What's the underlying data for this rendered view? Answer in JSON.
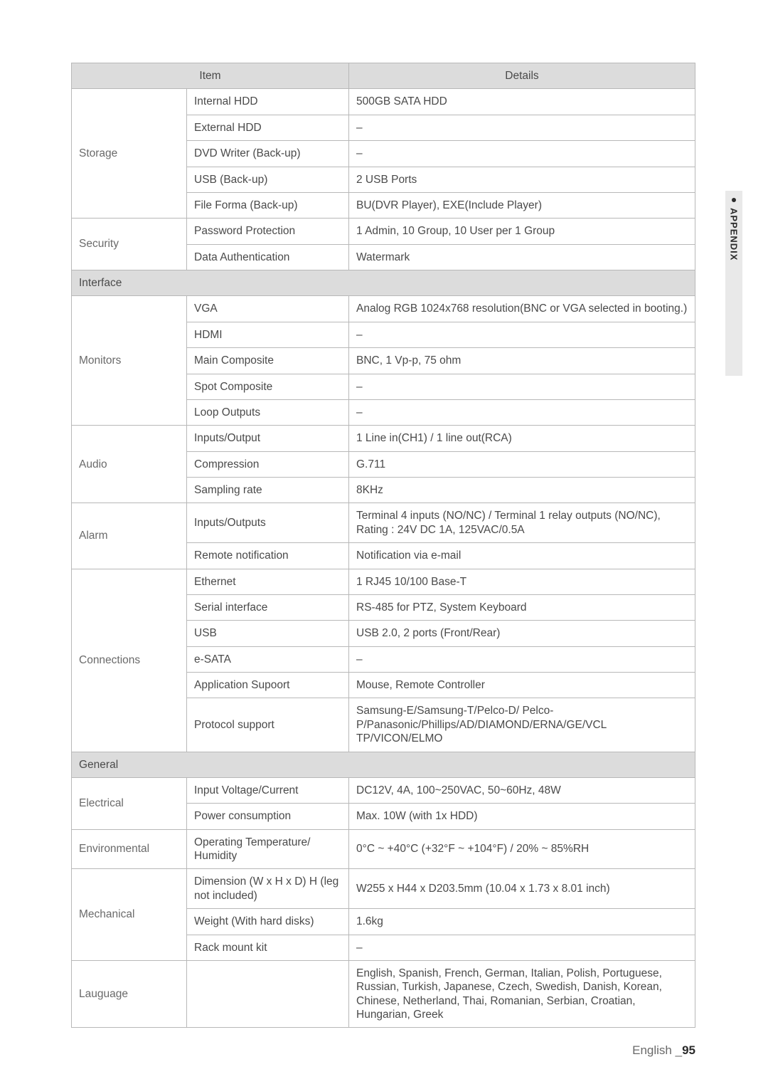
{
  "table": {
    "header_bg": "#dcdcdc",
    "border_color": "#b8b8b8",
    "text_color": "#4a4a4a",
    "font_size": 15.5,
    "headers": {
      "item": "Item",
      "details": "Details"
    },
    "sections": {
      "interface": "Interface",
      "general": "General"
    },
    "categories": {
      "storage": "Storage",
      "security": "Security",
      "monitors": "Monitors",
      "audio": "Audio",
      "alarm": "Alarm",
      "connections": "Connections",
      "electrical": "Electrical",
      "environmental": "Environmental",
      "mechanical": "Mechanical",
      "language": "Lauguage"
    },
    "rows": {
      "storage": [
        {
          "label": "Internal HDD",
          "value": "500GB SATA HDD"
        },
        {
          "label": "External HDD",
          "value": "–"
        },
        {
          "label": "DVD Writer (Back-up)",
          "value": "–"
        },
        {
          "label": "USB (Back-up)",
          "value": "2 USB Ports"
        },
        {
          "label": "File Forma (Back-up)",
          "value": "BU(DVR Player), EXE(Include Player)"
        }
      ],
      "security": [
        {
          "label": "Password Protection",
          "value": "1 Admin, 10 Group, 10 User per 1 Group"
        },
        {
          "label": "Data Authentication",
          "value": "Watermark"
        }
      ],
      "monitors": [
        {
          "label": "VGA",
          "value": "Analog RGB 1024x768 resolution(BNC or VGA selected in booting.)"
        },
        {
          "label": "HDMI",
          "value": "–"
        },
        {
          "label": "Main Composite",
          "value": "BNC, 1 Vp-p, 75 ohm"
        },
        {
          "label": "Spot Composite",
          "value": "–"
        },
        {
          "label": "Loop Outputs",
          "value": "–"
        }
      ],
      "audio": [
        {
          "label": "Inputs/Output",
          "value": "1 Line in(CH1) / 1 line out(RCA)"
        },
        {
          "label": "Compression",
          "value": "G.711"
        },
        {
          "label": "Sampling rate",
          "value": "8KHz"
        }
      ],
      "alarm": [
        {
          "label": "Inputs/Outputs",
          "value": "Terminal 4 inputs (NO/NC) / Terminal 1 relay outputs (NO/NC),\nRating : 24V DC 1A, 125VAC/0.5A"
        },
        {
          "label": "Remote notification",
          "value": "Notification via e-mail"
        }
      ],
      "connections": [
        {
          "label": "Ethernet",
          "value": "1 RJ45 10/100 Base-T"
        },
        {
          "label": "Serial interface",
          "value": "RS-485 for PTZ, System Keyboard"
        },
        {
          "label": "USB",
          "value": "USB 2.0, 2 ports (Front/Rear)"
        },
        {
          "label": "e-SATA",
          "value": "–"
        },
        {
          "label": "Application Supoort",
          "value": "Mouse, Remote Controller"
        },
        {
          "label": "Protocol support",
          "value": "Samsung-E/Samsung-T/Pelco-D/ Pelco-P/Panasonic/Phillips/AD/DIAMOND/ERNA/GE/VCL TP/VICON/ELMO"
        }
      ],
      "electrical": [
        {
          "label": "Input Voltage/Current",
          "value": "DC12V, 4A, 100~250VAC, 50~60Hz, 48W"
        },
        {
          "label": "Power consumption",
          "value": "Max. 10W (with 1x HDD)"
        }
      ],
      "environmental": [
        {
          "label": "Operating Temperature/ Humidity",
          "value": "0°C ~ +40°C (+32°F ~ +104°F) / 20% ~ 85%RH"
        }
      ],
      "mechanical": [
        {
          "label": "Dimension (W x H x D) H (leg not included)",
          "value": "W255 x H44 x D203.5mm (10.04 x 1.73 x 8.01 inch)"
        },
        {
          "label": "Weight (With hard disks)",
          "value": "1.6kg"
        },
        {
          "label": "Rack mount kit",
          "value": "–"
        }
      ],
      "language": [
        {
          "label": "",
          "value": "English, Spanish, French, German, Italian, Polish, Portuguese, Russian, Turkish, Japanese, Czech, Swedish, Danish, Korean, Chinese, Netherland, Thai, Romanian, Serbian, Croatian, Hungarian, Greek"
        }
      ]
    }
  },
  "side_tab": {
    "label": "APPENDIX",
    "bg": "#e9e9e9",
    "text_color": "#2a2a2a",
    "bullet_color": "#2a2a2a"
  },
  "footer": {
    "lang": "English",
    "sep": " _",
    "page": "95",
    "lang_color": "#6a6a6a",
    "page_color": "#2a2a2a"
  }
}
